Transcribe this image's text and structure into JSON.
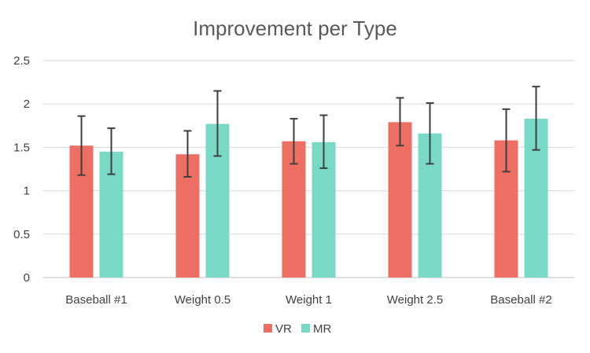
{
  "chart_data": {
    "type": "bar",
    "title": "Improvement per Type",
    "xlabel": "",
    "ylabel": "",
    "categories": [
      "Baseball #1",
      "Weight 0.5",
      "Weight 1",
      "Weight 2.5",
      "Baseball #2"
    ],
    "ylim": [
      0,
      2.5
    ],
    "yticks": [
      0,
      0.5,
      1,
      1.5,
      2,
      2.5
    ],
    "ytick_labels": [
      "0",
      "0.5",
      "1",
      "1.5",
      "2",
      "2.5"
    ],
    "grid": true,
    "legend_position": "bottom",
    "series": [
      {
        "name": "VR",
        "color": "#ed6e62",
        "values": [
          1.52,
          1.42,
          1.57,
          1.79,
          1.58
        ],
        "error_low": [
          1.18,
          1.16,
          1.31,
          1.52,
          1.22
        ],
        "error_high": [
          1.86,
          1.69,
          1.83,
          2.07,
          1.94
        ]
      },
      {
        "name": "MR",
        "color": "#78d9c7",
        "values": [
          1.45,
          1.77,
          1.56,
          1.66,
          1.83
        ],
        "error_low": [
          1.19,
          1.4,
          1.26,
          1.31,
          1.47
        ],
        "error_high": [
          1.72,
          2.15,
          1.87,
          2.01,
          2.2
        ]
      }
    ]
  }
}
